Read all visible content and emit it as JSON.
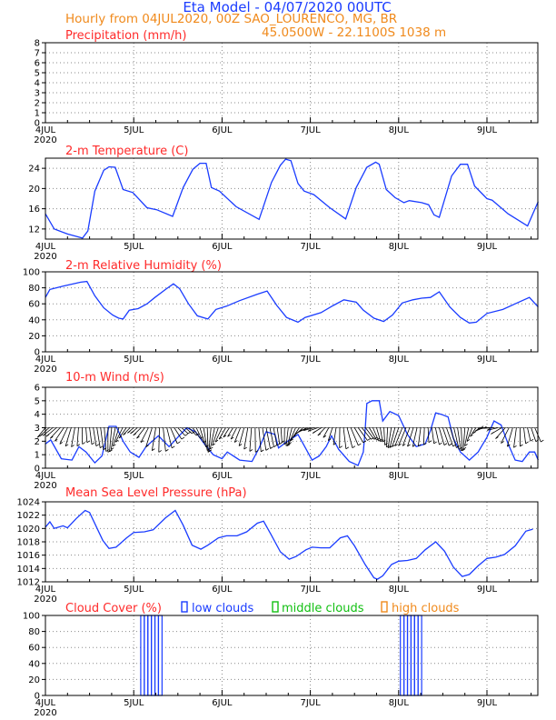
{
  "header": {
    "title": "Eta Model - 04/07/2020 00UTC",
    "subtitle": "Hourly from 04JUL2020, 00Z   SAO_LOURENCO, MG, BR",
    "location": "45.0500W - 22.1100S    1038  m"
  },
  "x_axis": {
    "day_labels": [
      "4JUL",
      "5JUL",
      "6JUL",
      "7JUL",
      "8JUL",
      "9JUL"
    ],
    "year_label": "2020"
  },
  "panels": {
    "precip": {
      "title": "Precipitation (mm/h)"
    },
    "temp": {
      "title": "2-m Temperature (C)"
    },
    "rh": {
      "title": "2-m Relative Humidity (%)"
    },
    "wind": {
      "title": "10-m Wind (m/s)"
    },
    "mslp": {
      "title": "Mean Sea Level Pressure (hPa)"
    },
    "cloud": {
      "title": "Cloud Cover (%)",
      "legend_low": "low clouds",
      "legend_mid": "middle clouds",
      "legend_high": "high clouds"
    }
  },
  "colors": {
    "series_line": "#1a3cff",
    "panel_title": "#ff2a2a",
    "low_clouds": "#1a3cff",
    "middle_clouds": "#12c012",
    "high_clouds": "#f08a1c",
    "wind_barb": "#000000"
  },
  "chart_data": [
    {
      "id": "precip",
      "type": "line",
      "title": "Precipitation (mm/h)",
      "ylim": [
        0,
        8
      ],
      "yticks": [
        0,
        1,
        2,
        3,
        4,
        5,
        6,
        7,
        8
      ],
      "grid": true,
      "series": [
        {
          "points": []
        }
      ]
    },
    {
      "id": "temp",
      "type": "line",
      "title": "2-m Temperature (C)",
      "ylim": [
        10,
        26
      ],
      "yticks": [
        12,
        16,
        20,
        24
      ],
      "grid": true,
      "series": [
        {
          "points": [
            [
              0,
              15
            ],
            [
              0.1,
              12
            ],
            [
              0.25,
              11
            ],
            [
              0.42,
              10.2
            ],
            [
              0.48,
              11.6
            ],
            [
              0.56,
              19.5
            ],
            [
              0.66,
              23.6
            ],
            [
              0.72,
              24.3
            ],
            [
              0.79,
              24.2
            ],
            [
              0.88,
              19.8
            ],
            [
              0.99,
              19.2
            ],
            [
              1.15,
              16.2
            ],
            [
              1.26,
              15.8
            ],
            [
              1.44,
              14.5
            ],
            [
              1.56,
              20.2
            ],
            [
              1.67,
              23.8
            ],
            [
              1.75,
              25
            ],
            [
              1.82,
              25
            ],
            [
              1.88,
              20.2
            ],
            [
              1.97,
              19.5
            ],
            [
              2.16,
              16.4
            ],
            [
              2.42,
              13.9
            ],
            [
              2.56,
              21.2
            ],
            [
              2.66,
              24.6
            ],
            [
              2.72,
              25.8
            ],
            [
              2.78,
              25.5
            ],
            [
              2.86,
              21
            ],
            [
              2.93,
              19.5
            ],
            [
              3.04,
              18.8
            ],
            [
              3.22,
              16.2
            ],
            [
              3.4,
              14
            ],
            [
              3.52,
              20.2
            ],
            [
              3.64,
              24.2
            ],
            [
              3.74,
              25.2
            ],
            [
              3.78,
              24.8
            ],
            [
              3.86,
              19.8
            ],
            [
              3.96,
              18.2
            ],
            [
              4.06,
              17.2
            ],
            [
              4.12,
              17.6
            ],
            [
              4.26,
              17.2
            ],
            [
              4.34,
              16.8
            ],
            [
              4.4,
              14.8
            ],
            [
              4.46,
              14.3
            ],
            [
              4.6,
              22.5
            ],
            [
              4.7,
              24.8
            ],
            [
              4.78,
              24.8
            ],
            [
              4.86,
              20.5
            ],
            [
              5,
              18
            ],
            [
              5.06,
              17.7
            ],
            [
              5.24,
              15
            ],
            [
              5.46,
              12.6
            ],
            [
              5.58,
              17.4
            ]
          ]
        }
      ]
    },
    {
      "id": "rh",
      "type": "line",
      "title": "2-m Relative Humidity (%)",
      "ylim": [
        0,
        100
      ],
      "yticks": [
        0,
        20,
        40,
        60,
        80,
        100
      ],
      "grid": true,
      "series": [
        {
          "points": [
            [
              0,
              68
            ],
            [
              0.05,
              78
            ],
            [
              0.2,
              82
            ],
            [
              0.4,
              87
            ],
            [
              0.47,
              88
            ],
            [
              0.56,
              70
            ],
            [
              0.66,
              55
            ],
            [
              0.76,
              46
            ],
            [
              0.83,
              42
            ],
            [
              0.88,
              41
            ],
            [
              0.95,
              52
            ],
            [
              1.05,
              54
            ],
            [
              1.15,
              60
            ],
            [
              1.24,
              68
            ],
            [
              1.36,
              78
            ],
            [
              1.45,
              85
            ],
            [
              1.52,
              79
            ],
            [
              1.62,
              60
            ],
            [
              1.72,
              45
            ],
            [
              1.84,
              41
            ],
            [
              1.93,
              53
            ],
            [
              2.05,
              57
            ],
            [
              2.2,
              64
            ],
            [
              2.4,
              72
            ],
            [
              2.51,
              76
            ],
            [
              2.62,
              58
            ],
            [
              2.73,
              43
            ],
            [
              2.86,
              37
            ],
            [
              2.94,
              43
            ],
            [
              3.12,
              49
            ],
            [
              3.26,
              58
            ],
            [
              3.38,
              65
            ],
            [
              3.52,
              62
            ],
            [
              3.6,
              52
            ],
            [
              3.72,
              42
            ],
            [
              3.83,
              38
            ],
            [
              3.93,
              46
            ],
            [
              4.04,
              61
            ],
            [
              4.16,
              65
            ],
            [
              4.26,
              67
            ],
            [
              4.36,
              68
            ],
            [
              4.46,
              75
            ],
            [
              4.58,
              56
            ],
            [
              4.7,
              43
            ],
            [
              4.8,
              36
            ],
            [
              4.88,
              37
            ],
            [
              5,
              48
            ],
            [
              5.18,
              53
            ],
            [
              5.34,
              61
            ],
            [
              5.48,
              68
            ],
            [
              5.58,
              56
            ]
          ]
        }
      ]
    },
    {
      "id": "wind",
      "type": "line",
      "title": "10-m Wind (m/s)",
      "ylim": [
        0,
        6
      ],
      "yticks": [
        0,
        1,
        2,
        3,
        4,
        5,
        6
      ],
      "grid": true,
      "series": [
        {
          "points": [
            [
              0,
              1.8
            ],
            [
              0.06,
              2.1
            ],
            [
              0.18,
              0.7
            ],
            [
              0.3,
              0.6
            ],
            [
              0.38,
              1.6
            ],
            [
              0.46,
              1.2
            ],
            [
              0.56,
              0.4
            ],
            [
              0.64,
              0.9
            ],
            [
              0.72,
              3.1
            ],
            [
              0.8,
              3.1
            ],
            [
              0.88,
              2
            ],
            [
              0.96,
              1.2
            ],
            [
              1.06,
              0.8
            ],
            [
              1.14,
              1.6
            ],
            [
              1.28,
              2.4
            ],
            [
              1.4,
              1.6
            ],
            [
              1.5,
              2.3
            ],
            [
              1.6,
              3
            ],
            [
              1.7,
              2.7
            ],
            [
              1.8,
              1.8
            ],
            [
              1.9,
              1
            ],
            [
              2.0,
              0.7
            ],
            [
              2.06,
              1.2
            ],
            [
              2.2,
              0.6
            ],
            [
              2.34,
              0.5
            ],
            [
              2.42,
              1.5
            ],
            [
              2.5,
              2.7
            ],
            [
              2.6,
              2.5
            ],
            [
              2.64,
              1.5
            ],
            [
              2.72,
              1.9
            ],
            [
              2.86,
              2.5
            ],
            [
              2.92,
              1.8
            ],
            [
              3.02,
              0.6
            ],
            [
              3.1,
              0.9
            ],
            [
              3.18,
              1.6
            ],
            [
              3.24,
              2.4
            ],
            [
              3.32,
              1.4
            ],
            [
              3.44,
              0.5
            ],
            [
              3.54,
              0.2
            ],
            [
              3.6,
              1.2
            ],
            [
              3.62,
              2.8
            ],
            [
              3.64,
              4.8
            ],
            [
              3.7,
              5
            ],
            [
              3.78,
              5
            ],
            [
              3.82,
              3.5
            ],
            [
              3.9,
              4.2
            ],
            [
              4.0,
              3.9
            ],
            [
              4.1,
              2.5
            ],
            [
              4.2,
              1.6
            ],
            [
              4.3,
              1.8
            ],
            [
              4.36,
              2.8
            ],
            [
              4.42,
              4.1
            ],
            [
              4.48,
              4
            ],
            [
              4.56,
              3.8
            ],
            [
              4.62,
              2.2
            ],
            [
              4.7,
              1.2
            ],
            [
              4.8,
              0.6
            ],
            [
              4.9,
              1.2
            ],
            [
              5,
              2.3
            ],
            [
              5.08,
              3.5
            ],
            [
              5.16,
              3.2
            ],
            [
              5.24,
              1.8
            ],
            [
              5.32,
              0.6
            ],
            [
              5.4,
              0.5
            ],
            [
              5.48,
              1.2
            ],
            [
              5.54,
              1.2
            ],
            [
              5.58,
              0.6
            ]
          ]
        }
      ]
    },
    {
      "id": "mslp",
      "type": "line",
      "title": "Mean Sea Level Pressure (hPa)",
      "ylim": [
        1012,
        1024
      ],
      "yticks": [
        1012,
        1014,
        1016,
        1018,
        1020,
        1022,
        1024
      ],
      "grid": true,
      "series": [
        {
          "points": [
            [
              0,
              1020.2
            ],
            [
              0.05,
              1021
            ],
            [
              0.1,
              1020
            ],
            [
              0.2,
              1020.4
            ],
            [
              0.25,
              1020.1
            ],
            [
              0.35,
              1021.5
            ],
            [
              0.45,
              1022.7
            ],
            [
              0.5,
              1022.4
            ],
            [
              0.65,
              1018.2
            ],
            [
              0.72,
              1017
            ],
            [
              0.8,
              1017.2
            ],
            [
              0.92,
              1018.6
            ],
            [
              1.0,
              1019.4
            ],
            [
              1.12,
              1019.5
            ],
            [
              1.22,
              1019.8
            ],
            [
              1.36,
              1021.6
            ],
            [
              1.47,
              1022.7
            ],
            [
              1.56,
              1020.5
            ],
            [
              1.66,
              1017.5
            ],
            [
              1.76,
              1016.9
            ],
            [
              1.84,
              1017.5
            ],
            [
              1.96,
              1018.6
            ],
            [
              2.05,
              1018.9
            ],
            [
              2.17,
              1018.9
            ],
            [
              2.28,
              1019.5
            ],
            [
              2.4,
              1020.8
            ],
            [
              2.47,
              1021.1
            ],
            [
              2.55,
              1019.2
            ],
            [
              2.66,
              1016.5
            ],
            [
              2.76,
              1015.4
            ],
            [
              2.84,
              1015.8
            ],
            [
              2.95,
              1016.8
            ],
            [
              3.02,
              1017.2
            ],
            [
              3.12,
              1017.1
            ],
            [
              3.22,
              1017.1
            ],
            [
              3.34,
              1018.6
            ],
            [
              3.42,
              1018.9
            ],
            [
              3.5,
              1017.4
            ],
            [
              3.62,
              1014.6
            ],
            [
              3.72,
              1012.6
            ],
            [
              3.76,
              1012.4
            ],
            [
              3.82,
              1012.9
            ],
            [
              3.92,
              1014.6
            ],
            [
              4.0,
              1015.1
            ],
            [
              4.1,
              1015.2
            ],
            [
              4.2,
              1015.5
            ],
            [
              4.3,
              1016.8
            ],
            [
              4.42,
              1018
            ],
            [
              4.52,
              1016.6
            ],
            [
              4.62,
              1014.2
            ],
            [
              4.72,
              1012.8
            ],
            [
              4.8,
              1013.1
            ],
            [
              4.9,
              1014.4
            ],
            [
              5.0,
              1015.5
            ],
            [
              5.1,
              1015.7
            ],
            [
              5.2,
              1016.1
            ],
            [
              5.32,
              1017.4
            ],
            [
              5.44,
              1019.6
            ],
            [
              5.52,
              1019.9
            ]
          ]
        }
      ]
    },
    {
      "id": "cloud",
      "type": "bar",
      "title": "Cloud Cover (%)",
      "ylim": [
        0,
        100
      ],
      "yticks": [
        0,
        20,
        40,
        60,
        80,
        100
      ],
      "grid": true,
      "series": [
        {
          "name": "low clouds",
          "bars": [
            [
              1.1,
              100
            ],
            [
              1.14,
              100
            ],
            [
              1.18,
              100
            ],
            [
              1.22,
              100
            ],
            [
              1.26,
              100
            ],
            [
              1.3,
              100
            ],
            [
              4.04,
              100
            ],
            [
              4.08,
              100
            ],
            [
              4.12,
              100
            ],
            [
              4.16,
              100
            ],
            [
              4.2,
              100
            ],
            [
              4.24,
              100
            ]
          ]
        },
        {
          "name": "middle clouds",
          "bars": []
        },
        {
          "name": "high clouds",
          "bars": []
        }
      ]
    }
  ]
}
